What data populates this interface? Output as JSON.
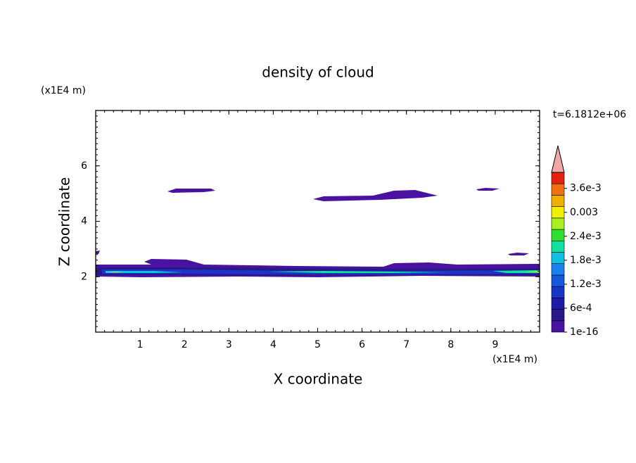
{
  "chart_data": {
    "type": "contour",
    "title": "density of cloud",
    "x_label": "X coordinate",
    "y_label": "Z coordinate",
    "x_unit": "(x1E4 m)",
    "y_unit": "(x1E4 m)",
    "time_label": "t=6.1812e+06",
    "xlim": [
      0,
      10
    ],
    "xticks": [
      1,
      2,
      3,
      4,
      5,
      6,
      7,
      8,
      9
    ],
    "ylim": [
      0,
      8
    ],
    "yticks": [
      2,
      4,
      6
    ],
    "colorbar": {
      "clim": [
        1e-16,
        0.004
      ],
      "ticks": [
        1e-16,
        {
          "value": 0.0006,
          "label": "6e-4"
        },
        {
          "value": 0.0012,
          "label": "1.2e-3"
        },
        {
          "value": 0.0018,
          "label": "1.8e-3"
        },
        {
          "value": 0.0024,
          "label": "2.4e-3"
        },
        0.003,
        {
          "value": 0.0036,
          "label": "3.6e-3"
        }
      ],
      "colors": [
        "#4a12a0",
        "#2b1888",
        "#1c1ca8",
        "#1a34c8",
        "#1458e0",
        "#1a82f0",
        "#10c0e0",
        "#10e0a0",
        "#30e030",
        "#a8f020",
        "#f0f000",
        "#f0b000",
        "#f07010",
        "#e82010"
      ],
      "extend_color": "#f0a8a8"
    }
  }
}
